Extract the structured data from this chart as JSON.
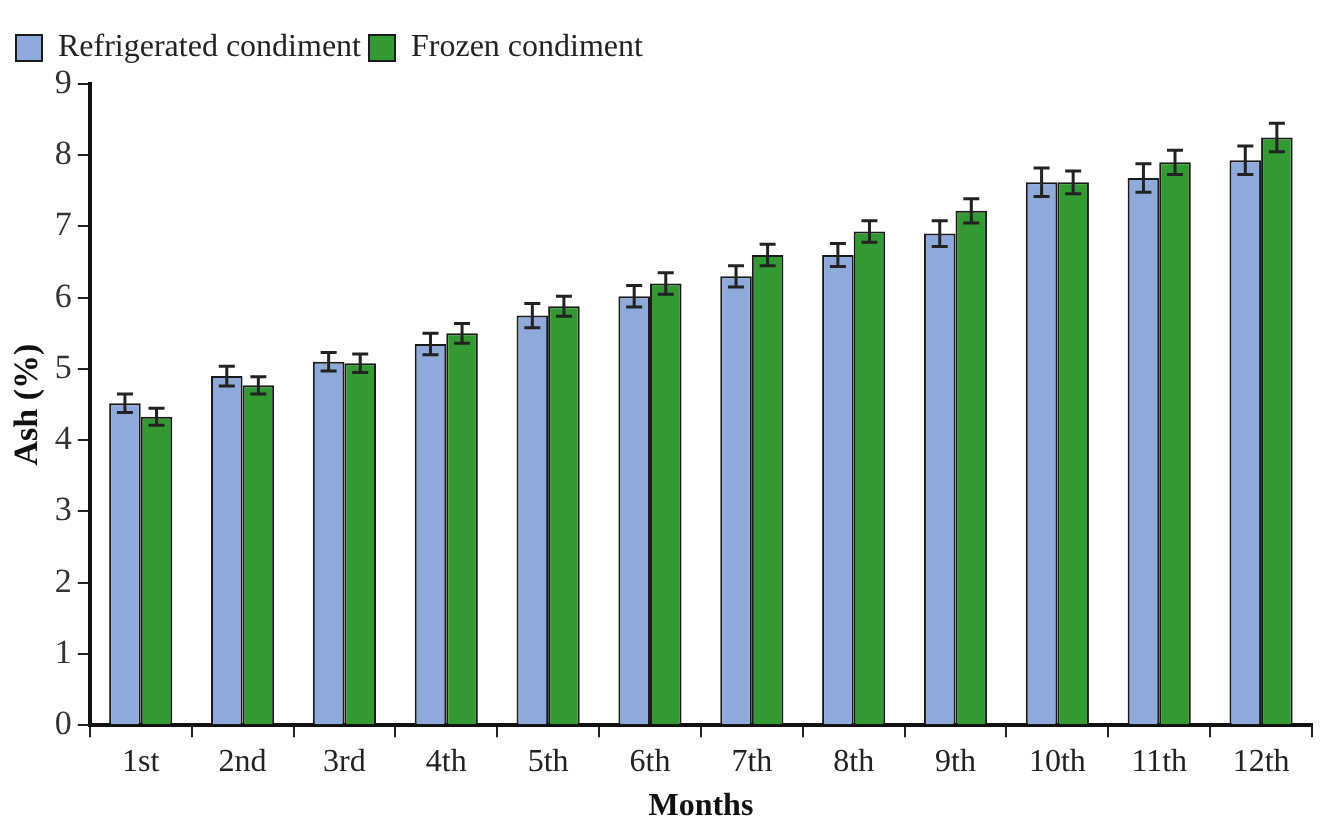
{
  "chart_data": {
    "type": "bar",
    "xlabel": "Months",
    "ylabel": "Ash (%)",
    "categories": [
      "1st",
      "2nd",
      "3rd",
      "4th",
      "5th",
      "6th",
      "7th",
      "8th",
      "9th",
      "10th",
      "11th",
      "12th"
    ],
    "series": [
      {
        "name": "Refrigerated condiment",
        "color": "#8eaadb",
        "values": [
          4.52,
          4.9,
          5.1,
          5.35,
          5.75,
          6.02,
          6.3,
          6.6,
          6.9,
          7.62,
          7.68,
          7.93
        ],
        "errors": [
          0.13,
          0.14,
          0.13,
          0.15,
          0.17,
          0.15,
          0.15,
          0.16,
          0.18,
          0.2,
          0.2,
          0.2
        ]
      },
      {
        "name": "Frozen condiment",
        "color": "#339933",
        "values": [
          4.33,
          4.77,
          5.08,
          5.5,
          5.88,
          6.2,
          6.6,
          6.93,
          7.22,
          7.62,
          7.9,
          8.25
        ],
        "errors": [
          0.12,
          0.12,
          0.13,
          0.14,
          0.14,
          0.15,
          0.15,
          0.15,
          0.17,
          0.16,
          0.17,
          0.2
        ]
      }
    ],
    "ylim": [
      0,
      9
    ],
    "yticks": [
      0,
      1,
      2,
      3,
      4,
      5,
      6,
      7,
      8,
      9
    ],
    "grid": false,
    "legend": "top left"
  }
}
